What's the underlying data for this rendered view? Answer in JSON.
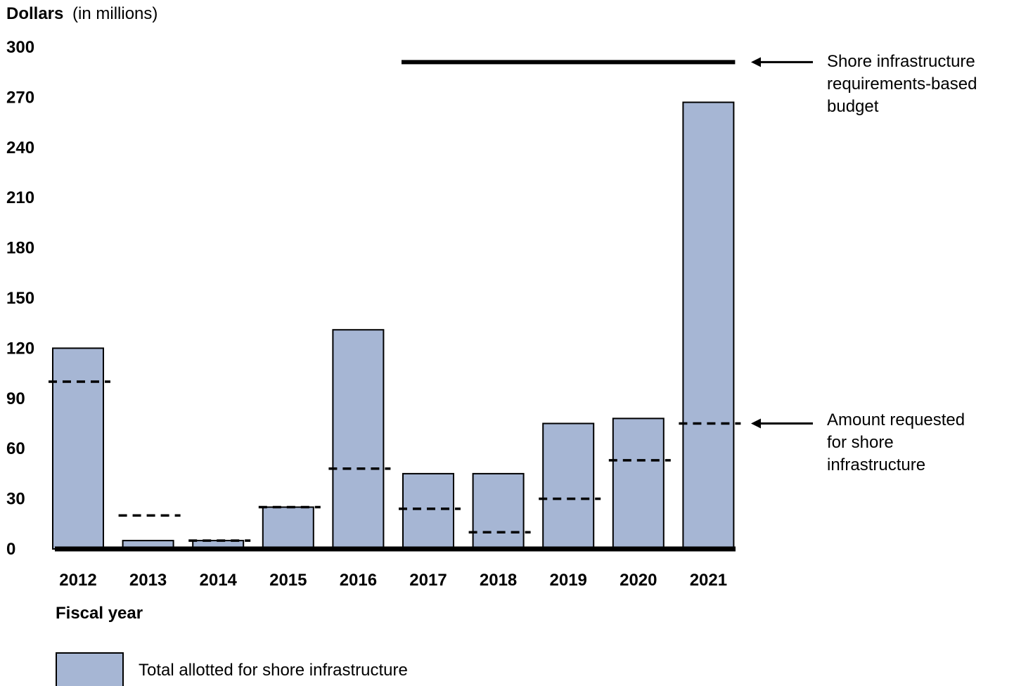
{
  "chart_data": {
    "type": "bar",
    "ylabel_bold": "Dollars",
    "ylabel_rest": "(in millions)",
    "xlabel": "Fiscal year",
    "ylim": [
      0,
      300
    ],
    "yticks": [
      "0",
      "30",
      "60",
      "90",
      "120",
      "150",
      "180",
      "210",
      "240",
      "270",
      "300"
    ],
    "categories": [
      "2012",
      "2013",
      "2014",
      "2015",
      "2016",
      "2017",
      "2018",
      "2019",
      "2020",
      "2021"
    ],
    "series": [
      {
        "name": "Total allotted for shore infrastructure",
        "values": [
          120,
          5,
          5,
          25,
          131,
          45,
          45,
          75,
          78,
          267
        ],
        "color": "#a6b6d4"
      }
    ],
    "requested": {
      "values": [
        100,
        20,
        5,
        25,
        48,
        24,
        10,
        30,
        53,
        75
      ]
    },
    "requirements_budget": {
      "value": 291,
      "from_category": "2017",
      "to_category": "2021"
    },
    "annotations": {
      "budget_lines": [
        "Shore infrastructure",
        "requirements-based",
        "budget"
      ],
      "requested_lines": [
        "Amount requested",
        "for shore",
        "infrastructure"
      ]
    },
    "legend": {
      "placement": "bottom-left",
      "label": "Total allotted for shore infrastructure"
    }
  }
}
